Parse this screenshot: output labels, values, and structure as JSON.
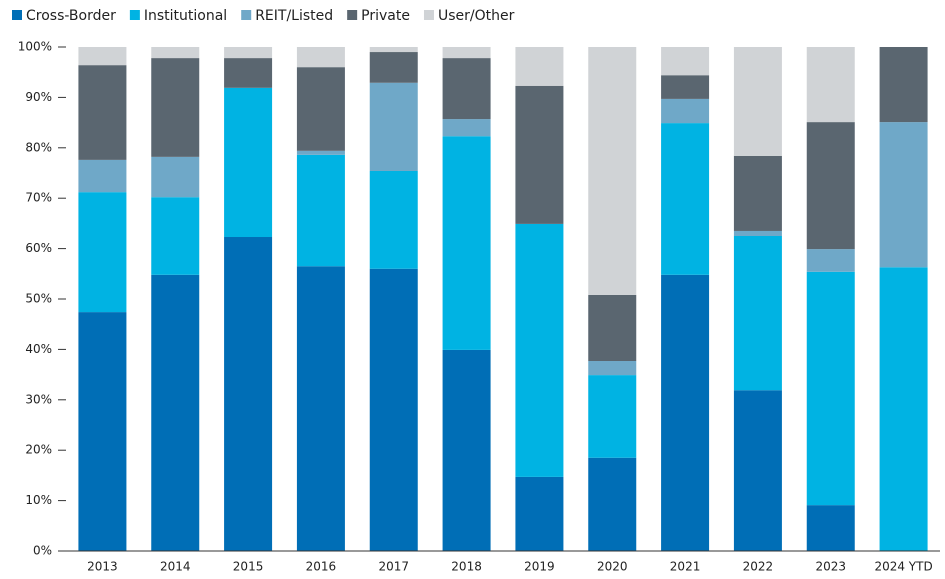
{
  "chart_data": {
    "type": "stacked_bar",
    "categories": [
      "2013",
      "2014",
      "2015",
      "2016",
      "2017",
      "2018",
      "2019",
      "2020",
      "2021",
      "2022",
      "2023",
      "2024 YTD"
    ],
    "series": [
      {
        "name": "Cross-Border",
        "color": "#006eb6",
        "values": [
          47.4,
          54.8,
          62.3,
          56.5,
          56.0,
          39.9,
          14.7,
          18.5,
          54.8,
          31.9,
          9.1,
          0
        ]
      },
      {
        "name": "Institutional",
        "color": "#00b3e3",
        "values": [
          23.8,
          15.4,
          29.6,
          22.1,
          19.4,
          42.4,
          50.2,
          16.4,
          30.1,
          30.6,
          46.3,
          56.3
        ]
      },
      {
        "name": "REIT/Listed",
        "color": "#6fa8c8",
        "values": [
          6.4,
          8.0,
          0,
          0.8,
          17.5,
          3.4,
          0,
          2.8,
          4.8,
          1.0,
          4.5,
          28.8
        ]
      },
      {
        "name": "Private",
        "color": "#5a6670",
        "values": [
          18.8,
          19.6,
          5.9,
          16.6,
          6.1,
          12.1,
          27.4,
          13.1,
          4.7,
          14.9,
          25.2,
          14.9
        ]
      },
      {
        "name": "User/Other",
        "color": "#d0d3d6",
        "values": [
          3.6,
          2.2,
          2.2,
          4.0,
          1.0,
          2.2,
          7.7,
          49.2,
          5.6,
          21.6,
          14.9,
          0
        ]
      }
    ],
    "ylim": [
      0,
      100
    ],
    "yticks": [
      {
        "value": 0,
        "label": "0%"
      },
      {
        "value": 10,
        "label": "10%"
      },
      {
        "value": 20,
        "label": "20%"
      },
      {
        "value": 30,
        "label": "30%"
      },
      {
        "value": 40,
        "label": "40%"
      },
      {
        "value": 50,
        "label": "50%"
      },
      {
        "value": 60,
        "label": "60%"
      },
      {
        "value": 70,
        "label": "70%"
      },
      {
        "value": 80,
        "label": "80%"
      },
      {
        "value": 90,
        "label": "90%"
      },
      {
        "value": 100,
        "label": "100%"
      }
    ],
    "grid": false
  }
}
